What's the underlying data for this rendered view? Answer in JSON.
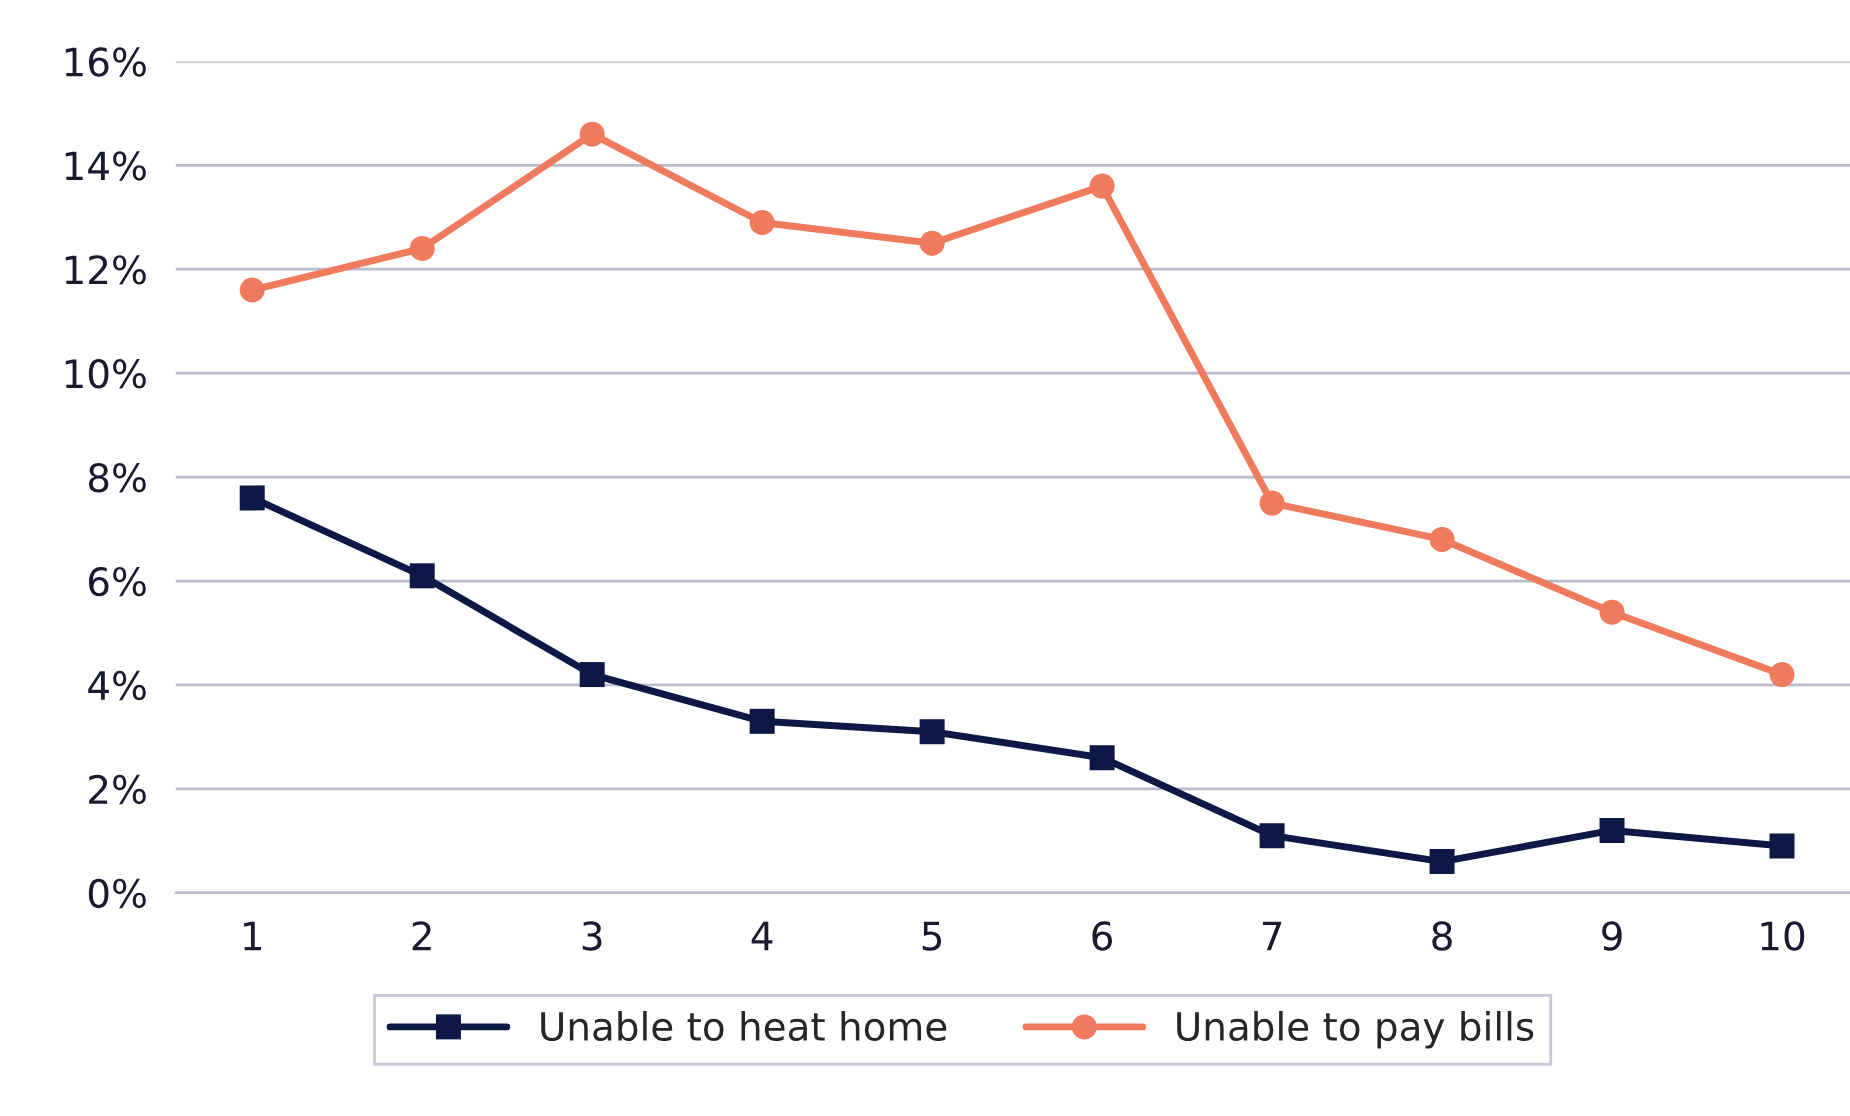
{
  "chart_data": {
    "type": "line",
    "categories": [
      "1",
      "2",
      "3",
      "4",
      "5",
      "6",
      "7",
      "8",
      "9",
      "10"
    ],
    "series": [
      {
        "name": "Unable to heat home",
        "color": "#0d1847",
        "marker": "square",
        "values": [
          7.6,
          6.1,
          4.2,
          3.3,
          3.1,
          2.6,
          1.1,
          0.6,
          1.2,
          0.9
        ]
      },
      {
        "name": "Unable to pay bills",
        "color": "#f07a5c",
        "marker": "circle",
        "values": [
          11.6,
          12.4,
          14.6,
          12.9,
          12.5,
          13.6,
          7.5,
          6.8,
          5.4,
          4.2
        ]
      }
    ],
    "ylim": [
      0,
      16
    ],
    "yticks": [
      {
        "value": 0,
        "label": "0%"
      },
      {
        "value": 2,
        "label": "2%"
      },
      {
        "value": 4,
        "label": "4%"
      },
      {
        "value": 6,
        "label": "6%"
      },
      {
        "value": 8,
        "label": "8%"
      },
      {
        "value": 10,
        "label": "10%"
      },
      {
        "value": 12,
        "label": "12%"
      },
      {
        "value": 14,
        "label": "14%"
      },
      {
        "value": 16,
        "label": "16%"
      }
    ],
    "grid": "y",
    "legend": "bottom",
    "line_style": "solid"
  }
}
